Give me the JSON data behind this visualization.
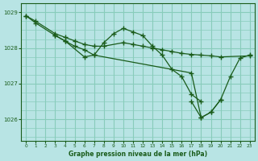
{
  "background_color": "#b8e4e4",
  "plot_bg_color": "#b8e4e4",
  "grid_color": "#88ccbb",
  "line_color": "#1a5c1a",
  "xlabel": "Graphe pression niveau de la mer (hPa)",
  "ylim": [
    1025.4,
    1029.25
  ],
  "xlim": [
    -0.5,
    23.5
  ],
  "yticks": [
    1026,
    1027,
    1028,
    1029
  ],
  "xticks": [
    0,
    1,
    2,
    3,
    4,
    5,
    6,
    7,
    8,
    9,
    10,
    11,
    12,
    13,
    14,
    15,
    16,
    17,
    18,
    19,
    20,
    21,
    22,
    23
  ],
  "series": [
    {
      "x": [
        0,
        1,
        3,
        4,
        5,
        6,
        7,
        8,
        10,
        11,
        12,
        13,
        14,
        15,
        16,
        17,
        18,
        19,
        20,
        23
      ],
      "y": [
        1028.9,
        1028.75,
        1028.4,
        1028.3,
        1028.2,
        1028.1,
        1028.05,
        1028.05,
        1028.15,
        1028.1,
        1028.05,
        1028.0,
        1027.95,
        1027.9,
        1027.85,
        1027.82,
        1027.8,
        1027.78,
        1027.75,
        1027.78
      ]
    },
    {
      "x": [
        0,
        1,
        3,
        4,
        5,
        6,
        7,
        17,
        18,
        19,
        20
      ],
      "y": [
        1028.9,
        1028.7,
        1028.35,
        1028.2,
        1028.05,
        1027.95,
        1027.8,
        1027.3,
        1026.05,
        1026.2,
        1026.55
      ]
    },
    {
      "x": [
        3,
        4,
        6,
        7,
        8,
        9,
        10,
        11,
        12,
        13,
        14,
        15,
        16,
        17,
        18
      ],
      "y": [
        1028.35,
        1028.2,
        1027.75,
        1027.8,
        1028.15,
        1028.4,
        1028.55,
        1028.45,
        1028.35,
        1028.05,
        1027.8,
        1027.4,
        1027.2,
        1026.7,
        1026.5
      ]
    },
    {
      "x": [
        17,
        18,
        19,
        20,
        21,
        22,
        23
      ],
      "y": [
        1026.5,
        1026.05,
        1026.2,
        1026.55,
        1027.2,
        1027.72,
        1027.8
      ]
    }
  ]
}
